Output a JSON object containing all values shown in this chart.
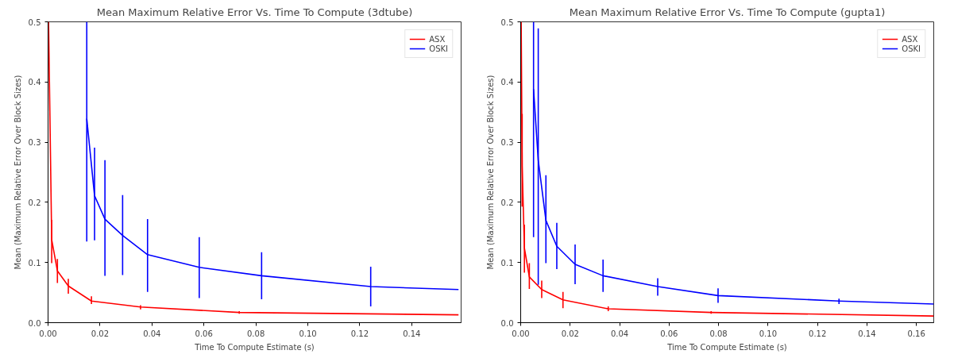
{
  "chart_data": [
    {
      "type": "line",
      "title": "Mean Maximum Relative Error Vs. Time To Compute (3dtube)",
      "xlabel": "Time To Compute Estimate (s)",
      "ylabel": "Mean (Maximum Relative Error Over Block Sizes)",
      "xlim": [
        0,
        0.159
      ],
      "ylim": [
        0,
        0.5
      ],
      "xticks": [
        {
          "value": 0,
          "label": "0.00"
        },
        {
          "value": 0.02,
          "label": "0.02"
        },
        {
          "value": 0.04,
          "label": "0.04"
        },
        {
          "value": 0.06,
          "label": "0.06"
        },
        {
          "value": 0.08,
          "label": "0.08"
        },
        {
          "value": 0.1,
          "label": "0.10"
        },
        {
          "value": 0.12,
          "label": "0.12"
        },
        {
          "value": 0.14,
          "label": "0.14"
        }
      ],
      "yticks": [
        {
          "value": 0,
          "label": "0.0"
        },
        0.1,
        0.2,
        0.3,
        0.4,
        0.5
      ],
      "grid": false,
      "legend": "top right",
      "series": [
        {
          "name": "ASX",
          "color": "#ff0000",
          "x": [
            0.0002,
            0.0014,
            0.0036,
            0.0078,
            0.0167,
            0.0356,
            0.0736,
            0.158
          ],
          "values": [
            0.5,
            0.138,
            0.086,
            0.061,
            0.036,
            0.026,
            0.017,
            0.013
          ],
          "errors": [
            null,
            [
              0.099,
              0.171
            ],
            [
              0.066,
              0.106
            ],
            [
              0.048,
              0.073
            ],
            [
              0.031,
              0.044
            ],
            [
              0.022,
              0.029
            ],
            [
              0.015,
              0.019
            ],
            null
          ]
        },
        {
          "name": "OSKI",
          "color": "#0000ff",
          "x": [
            0.0149,
            0.0179,
            0.0219,
            0.0287,
            0.0383,
            0.0582,
            0.0822,
            0.1242,
            0.158
          ],
          "values": [
            0.339,
            0.211,
            0.172,
            0.145,
            0.113,
            0.092,
            0.078,
            0.06,
            0.055
          ],
          "errors": [
            [
              0.135,
              0.5
            ],
            [
              0.137,
              0.291
            ],
            [
              0.078,
              0.27
            ],
            [
              0.079,
              0.212
            ],
            [
              0.051,
              0.172
            ],
            [
              0.041,
              0.142
            ],
            [
              0.039,
              0.117
            ],
            [
              0.027,
              0.093
            ],
            null
          ]
        }
      ]
    },
    {
      "type": "line",
      "title": "Mean Maximum Relative Error Vs. Time To Compute (gupta1)",
      "xlabel": "Time To Compute Estimate (s)",
      "ylabel": "Mean (Maximum Relative Error Over Block Sizes)",
      "xlim": [
        0,
        0.167
      ],
      "ylim": [
        0,
        0.5
      ],
      "xticks": [
        {
          "value": 0,
          "label": "0.00"
        },
        {
          "value": 0.02,
          "label": "0.02"
        },
        {
          "value": 0.04,
          "label": "0.04"
        },
        {
          "value": 0.06,
          "label": "0.06"
        },
        {
          "value": 0.08,
          "label": "0.08"
        },
        {
          "value": 0.1,
          "label": "0.10"
        },
        {
          "value": 0.12,
          "label": "0.12"
        },
        {
          "value": 0.14,
          "label": "0.14"
        },
        {
          "value": 0.16,
          "label": "0.16"
        }
      ],
      "yticks": [
        {
          "value": 0,
          "label": "0.0"
        },
        0.1,
        0.2,
        0.3,
        0.4,
        0.5
      ],
      "grid": false,
      "legend": "top right",
      "series": [
        {
          "name": "ASX",
          "color": "#ff0000",
          "x": [
            0.0002,
            0.0006,
            0.0015,
            0.0035,
            0.0085,
            0.0171,
            0.0354,
            0.077,
            0.167
          ],
          "values": [
            0.5,
            0.26,
            0.124,
            0.076,
            0.055,
            0.038,
            0.023,
            0.017,
            0.011
          ],
          "errors": [
            null,
            [
              0.193,
              0.347
            ],
            [
              0.083,
              0.163
            ],
            [
              0.056,
              0.099
            ],
            [
              0.041,
              0.07
            ],
            [
              0.024,
              0.051
            ],
            [
              0.019,
              0.027
            ],
            [
              0.015,
              0.019
            ],
            null
          ]
        },
        {
          "name": "OSKI",
          "color": "#0000ff",
          "x": [
            0.0052,
            0.0071,
            0.0102,
            0.0146,
            0.022,
            0.0333,
            0.0554,
            0.0798,
            0.1287,
            0.167
          ],
          "values": [
            0.388,
            0.27,
            0.17,
            0.127,
            0.097,
            0.078,
            0.06,
            0.045,
            0.036,
            0.031
          ],
          "errors": [
            [
              0.142,
              0.5
            ],
            [
              0.063,
              0.489
            ],
            [
              0.099,
              0.245
            ],
            [
              0.089,
              0.166
            ],
            [
              0.064,
              0.13
            ],
            [
              0.051,
              0.105
            ],
            [
              0.045,
              0.074
            ],
            [
              0.033,
              0.057
            ],
            [
              0.031,
              0.04
            ],
            null
          ]
        }
      ]
    }
  ]
}
